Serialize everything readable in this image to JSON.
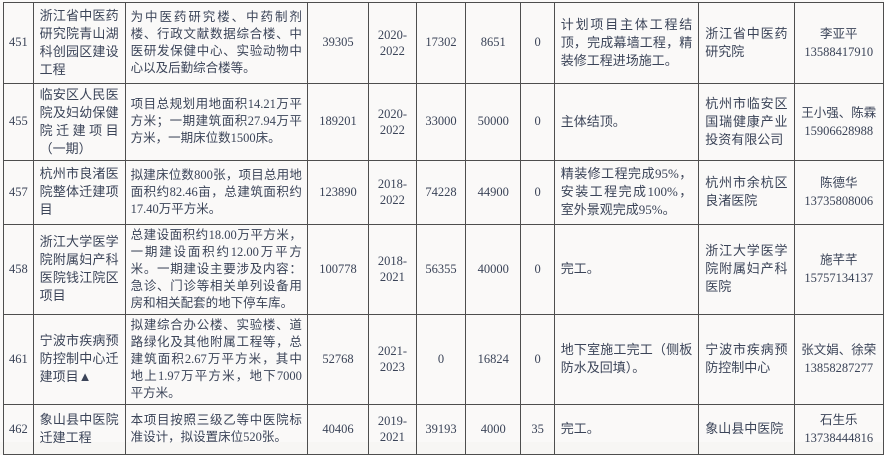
{
  "colors": {
    "text": "#3b4458",
    "border": "#4e4e4e",
    "background": "#faf9f8"
  },
  "table": {
    "rows": [
      {
        "id": "451",
        "name": "浙江省中医药研究院青山湖科创园区建设工程",
        "description": "为中医药研究楼、中药制剂楼、行政文献数据综合楼、中医研发保健中心、实验动物中心以及后勤综合楼等。",
        "total_investment": "39305",
        "years": "2020-2022",
        "value_a": "17302",
        "value_b": "8651",
        "value_c": "0",
        "progress": "计划项目主体工程结顶，完成幕墙工程，精装修工程进场施工。",
        "org": "浙江省中医药研究院",
        "contact_name": "李亚平",
        "contact_phone": "13588417910"
      },
      {
        "id": "455",
        "name": "临安区人民医院及妇幼保健院迁建项目（一期）",
        "description": "项目总规划用地面积14.21万平方米；一期建筑面积27.94万平方米，一期床位数1500床。",
        "total_investment": "189201",
        "years": "2020-2022",
        "value_a": "33000",
        "value_b": "50000",
        "value_c": "0",
        "progress": "主体结顶。",
        "org": "杭州市临安区国瑞健康产业投资有限公司",
        "contact_name": "王小强、陈霖",
        "contact_phone": "15906628988"
      },
      {
        "id": "457",
        "name": "杭州市良渚医院整体迁建项目",
        "description": "拟建床位数800张，项目总用地面积约82.46亩，总建筑面积约17.40万平方米。",
        "total_investment": "123890",
        "years": "2018-2022",
        "value_a": "74228",
        "value_b": "44900",
        "value_c": "0",
        "progress": "精装修工程完成95%，安装工程完成100%，室外景观完成95%。",
        "org": "杭州市余杭区良渚医院",
        "contact_name": "陈德华",
        "contact_phone": "13735808006"
      },
      {
        "id": "458",
        "name": "浙江大学医学院附属妇产科医院钱江院区项目",
        "description": "总建设面积约18.00万平方米，一期建设面积约12.00万平方米。一期建设主要涉及内容：急诊、门诊等相关单列设备用房和相关配套的地下停车库。",
        "total_investment": "100778",
        "years": "2018-2021",
        "value_a": "56355",
        "value_b": "40000",
        "value_c": "0",
        "progress": "完工。",
        "org": "浙江大学医学院附属妇产科医院",
        "contact_name": "施芊芊",
        "contact_phone": "15757134137"
      },
      {
        "id": "461",
        "name": "宁波市疾病预防控制中心迁建项目▲",
        "description": "拟建综合办公楼、实验楼、道路绿化及其他附属工程等，总建筑面积2.67万平方米，其中地上1.97万平方米，地下7000平方米。",
        "total_investment": "52768",
        "years": "2021-2023",
        "value_a": "0",
        "value_b": "16824",
        "value_c": "0",
        "progress": "地下室施工完工（侧板防水及回填）。",
        "org": "宁波市疾病预防控制中心",
        "contact_name": "张文娟、徐荣",
        "contact_phone": "13858287277"
      },
      {
        "id": "462",
        "name": "象山县中医院迁建工程",
        "description": "本项目按照三级乙等中医院标准设计，拟设置床位520张。",
        "total_investment": "40406",
        "years": "2019-2021",
        "value_a": "39193",
        "value_b": "4000",
        "value_c": "35",
        "progress": "完工。",
        "org": "象山县中医院",
        "contact_name": "石生乐",
        "contact_phone": "13738444816"
      }
    ]
  }
}
